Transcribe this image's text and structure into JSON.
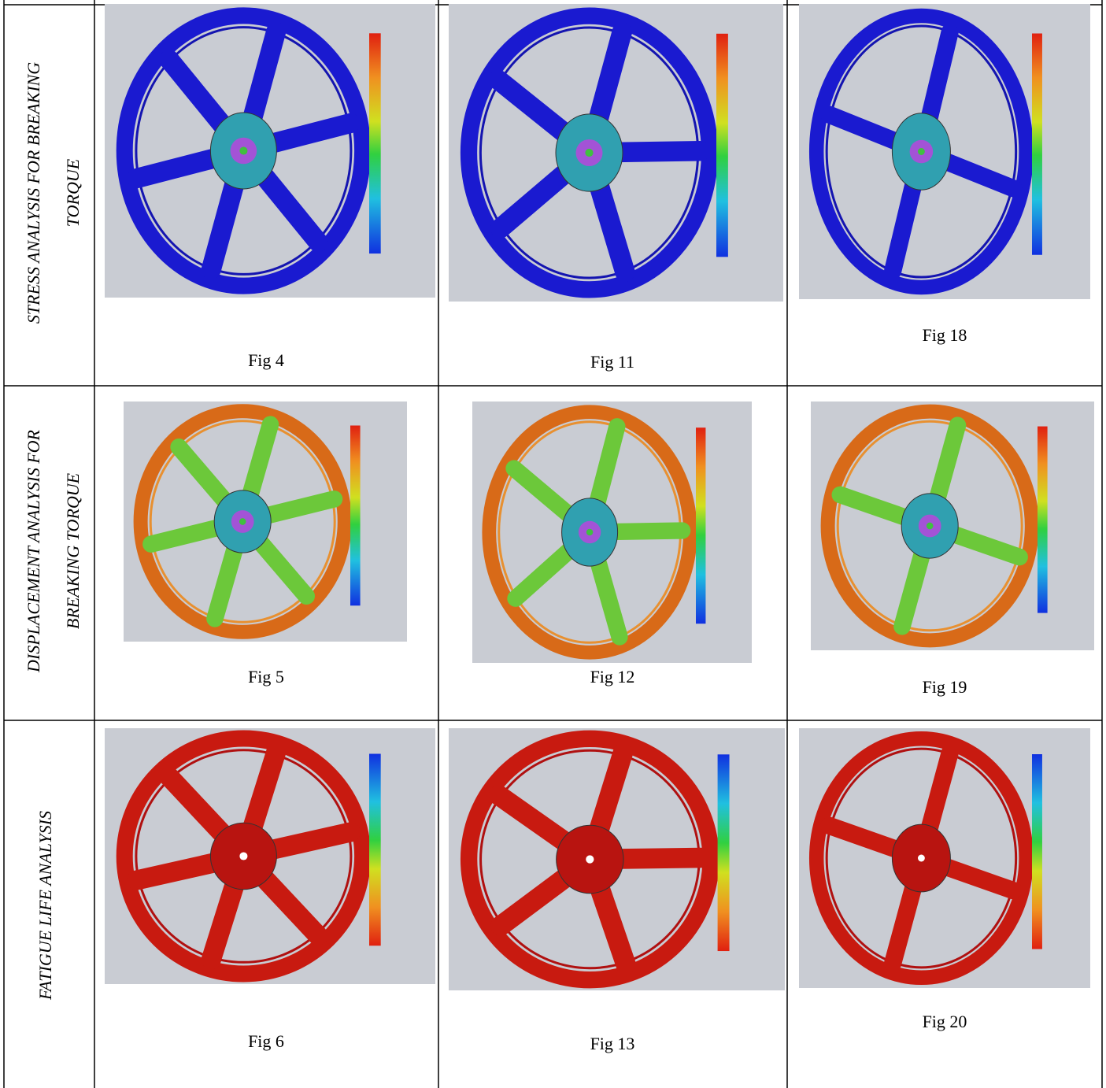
{
  "table": {
    "rows": [
      {
        "label": [
          "STRESS  ANALYSIS FOR BREAKING",
          "TORQUE"
        ],
        "figures": [
          "Fig 4",
          "Fig 11",
          "Fig 18"
        ]
      },
      {
        "label": [
          "DISPLACEMENT ANALYSIS FOR",
          "BREAKING TORQUE"
        ],
        "figures": [
          "Fig 5",
          "Fig 12",
          "Fig 19"
        ]
      },
      {
        "label": [
          "FATIGUE LIFE ANALYSIS"
        ],
        "figures": [
          "Fig 6",
          "Fig 13",
          "Fig 20"
        ]
      }
    ]
  }
}
